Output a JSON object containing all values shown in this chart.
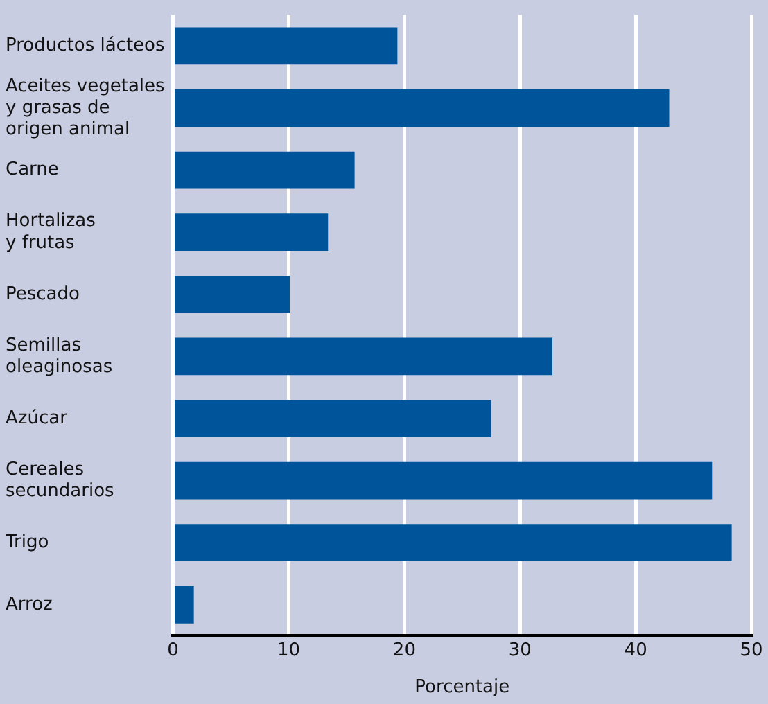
{
  "chart_data": {
    "type": "bar",
    "orientation": "horizontal",
    "xlabel": "Porcentaje",
    "categories": [
      "Productos lácteos",
      "Aceites vegetales\ny grasas de\norigen animal",
      "Carne",
      "Hortalizas\ny frutas",
      "Pescado",
      "Semillas\noleaginosas",
      "Azúcar",
      "Cereales\nsecundarios",
      "Trigo",
      "Arroz"
    ],
    "values": [
      19.4,
      42.9,
      15.7,
      13.4,
      10.1,
      32.8,
      27.5,
      46.6,
      48.3,
      1.8
    ],
    "color": "#00559a",
    "xlim": [
      0,
      50
    ],
    "xticks": [
      0,
      10,
      20,
      30,
      40,
      50
    ],
    "grid": "x",
    "legend": false
  }
}
